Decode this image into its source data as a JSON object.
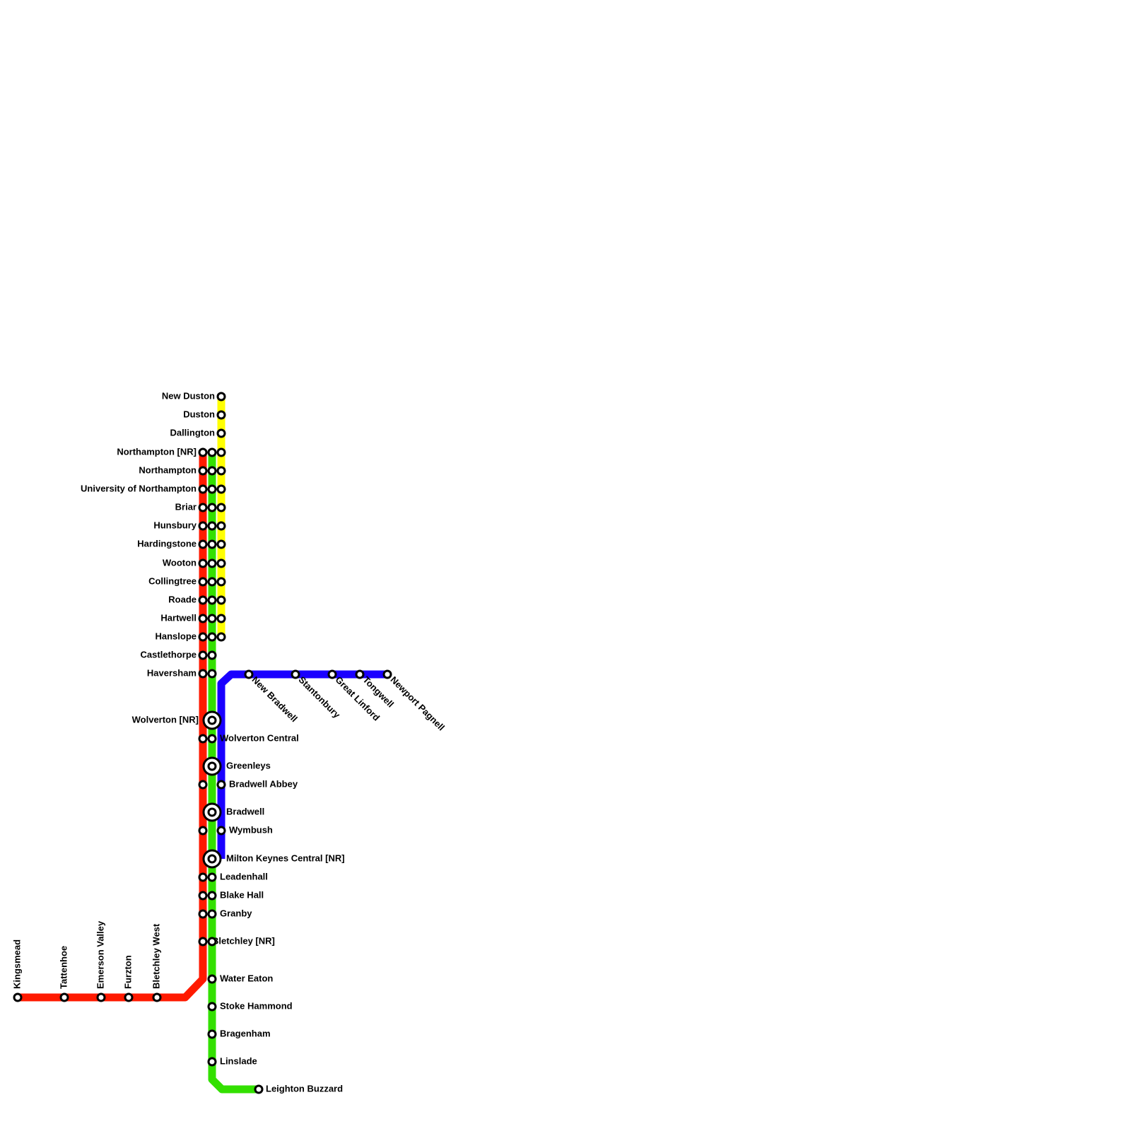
{
  "stations": {
    "top": [
      "New Duston",
      "Duston",
      "Dallington"
    ],
    "left": [
      "Northampton [NR]",
      "Northampton",
      "University of Northampton",
      "Briar",
      "Hunsbury",
      "Hardingstone",
      "Wooton",
      "Collingtree",
      "Roade",
      "Hartwell",
      "Hanslope",
      "Castlethorpe",
      "Haversham",
      "Wolverton [NR]"
    ],
    "right": [
      "Wolverton Central",
      "Greenleys",
      "Bradwell Abbey",
      "Bradwell",
      "Wymbush",
      "Milton Keynes Central [NR]",
      "Leadenhall",
      "Blake Hall",
      "Granby",
      "Bletchley [NR]",
      "Water Eaton",
      "Stoke Hammond",
      "Bragenham",
      "Linslade",
      "Leighton Buzzard"
    ],
    "east": [
      "New Bradwell",
      "Stantonbury",
      "Great Linford",
      "Tongwell",
      "Newport Pagnell"
    ],
    "west": [
      "Kingsmead",
      "Tattenhoe",
      "Emerson Valley",
      "Furzton",
      "Bletchley West"
    ]
  }
}
